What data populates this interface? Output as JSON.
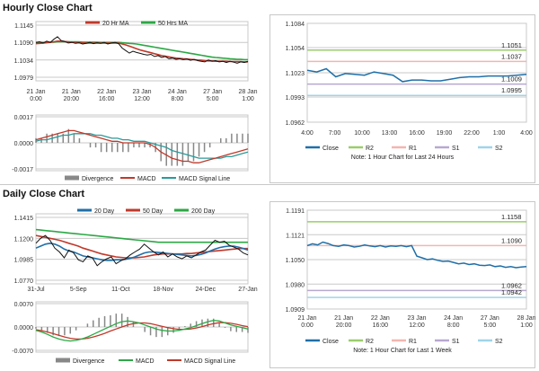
{
  "sections": {
    "hourly_title": "Hourly Close Chart",
    "daily_title": "Daily Close Chart"
  },
  "colors": {
    "close": "#1f6fa8",
    "ma_short": "#c0392b",
    "ma_long": "#2ca845",
    "r2": "#9acd6a",
    "r1": "#f2b6b0",
    "s1": "#b8a8d0",
    "s2": "#9fd4e8",
    "divergence": "#888888",
    "macd_red": "#c0392b",
    "macd_green": "#2ca845",
    "signal_teal": "#2a9a9a",
    "grid": "#c8c8c8"
  },
  "chart_data": [
    {
      "id": "hourly_price",
      "type": "line",
      "title": "",
      "yticks": [
        "1.1145",
        "1.1090",
        "1.1034",
        "1.0979"
      ],
      "ylim": [
        1.0979,
        1.1145
      ],
      "xticks": [
        "21 Jan\n0:00",
        "21 Jan\n20:00",
        "22 Jan\n16:00",
        "23 Jan\n12:00",
        "24 Jan\n8:00",
        "27 Jan\n5:00",
        "28 Jan\n1:00"
      ],
      "legend": [
        "20 Hr MA",
        "50 Hrs MA"
      ],
      "series": [
        {
          "name": "Close",
          "values": [
            1.109,
            1.1092,
            1.1088,
            1.1094,
            1.109,
            1.11,
            1.1108,
            1.1096,
            1.1093,
            1.1088,
            1.109,
            1.1087,
            1.1089,
            1.1085,
            1.1087,
            1.109,
            1.1086,
            1.1089,
            1.1087,
            1.109,
            1.1085,
            1.1088,
            1.109,
            1.1086,
            1.1072,
            1.1064,
            1.1056,
            1.1062,
            1.1058,
            1.1055,
            1.1052,
            1.105,
            1.1052,
            1.1045,
            1.1048,
            1.1042,
            1.1045,
            1.1038,
            1.104,
            1.1036,
            1.1038,
            1.1035,
            1.1037,
            1.1033,
            1.1036,
            1.1032,
            1.103,
            1.1028,
            1.1034,
            1.103,
            1.1032,
            1.1028,
            1.103,
            1.1026,
            1.103,
            1.1027,
            1.1024,
            1.1028,
            1.1026,
            1.103
          ]
        },
        {
          "name": "20 Hr MA",
          "values": [
            1.1086,
            1.1087,
            1.1088,
            1.1089,
            1.109,
            1.1092,
            1.1094,
            1.1094,
            1.1093,
            1.1092,
            1.1091,
            1.109,
            1.1089,
            1.1089,
            1.1088,
            1.1088,
            1.1088,
            1.1088,
            1.1088,
            1.1088,
            1.1088,
            1.1088,
            1.1088,
            1.1088,
            1.1085,
            1.1082,
            1.1078,
            1.1074,
            1.107,
            1.1066,
            1.1063,
            1.106,
            1.1057,
            1.1054,
            1.1051,
            1.1048,
            1.1046,
            1.1044,
            1.1042,
            1.104,
            1.1039,
            1.1038,
            1.1037,
            1.1036,
            1.1035,
            1.1034,
            1.1033,
            1.1032,
            1.1031,
            1.1031,
            1.103,
            1.103,
            1.103,
            1.103,
            1.1029,
            1.1029,
            1.1029,
            1.1029,
            1.1028,
            1.1028
          ]
        },
        {
          "name": "50 Hrs MA",
          "values": [
            1.109,
            1.109,
            1.109,
            1.109,
            1.1091,
            1.1091,
            1.1092,
            1.1092,
            1.1092,
            1.1092,
            1.1092,
            1.1092,
            1.1092,
            1.1091,
            1.1091,
            1.1091,
            1.1091,
            1.1091,
            1.109,
            1.109,
            1.109,
            1.109,
            1.109,
            1.109,
            1.1089,
            1.1088,
            1.1087,
            1.1086,
            1.1085,
            1.1083,
            1.1081,
            1.1079,
            1.1077,
            1.1075,
            1.1073,
            1.1071,
            1.1069,
            1.1067,
            1.1065,
            1.1063,
            1.1061,
            1.1059,
            1.1057,
            1.1055,
            1.1053,
            1.1051,
            1.1049,
            1.1047,
            1.1045,
            1.1043,
            1.1042,
            1.1041,
            1.104,
            1.1039,
            1.1038,
            1.1037,
            1.1036,
            1.1036,
            1.1035,
            1.1035
          ]
        }
      ]
    },
    {
      "id": "hourly_macd",
      "type": "line",
      "yticks": [
        "0.0017",
        "0.0000",
        "-0.0017"
      ],
      "ylim": [
        -0.0017,
        0.0017
      ],
      "legend": [
        "Divergence",
        "MACD",
        "MACD Signal Line"
      ],
      "series": [
        {
          "name": "MACD",
          "values": [
            0.0002,
            0.0003,
            0.0004,
            0.0005,
            0.0006,
            0.0007,
            0.0008,
            0.0008,
            0.0007,
            0.0006,
            0.0005,
            0.0004,
            0.0003,
            0.0002,
            0.0001,
            0.0001,
            0.0,
            0.0,
            0.0,
            0.0,
            0.0,
            -0.0001,
            -0.0003,
            -0.0006,
            -0.0008,
            -0.001,
            -0.0011,
            -0.0012,
            -0.0012,
            -0.0013,
            -0.0013,
            -0.0012,
            -0.0011,
            -0.001,
            -0.0009,
            -0.0008,
            -0.0007,
            -0.0006,
            -0.0005,
            -0.0004
          ]
        },
        {
          "name": "MACD Signal Line",
          "values": [
            0.0001,
            0.0002,
            0.0002,
            0.0003,
            0.0004,
            0.0005,
            0.0005,
            0.0006,
            0.0006,
            0.0006,
            0.0006,
            0.0005,
            0.0005,
            0.0004,
            0.0003,
            0.0003,
            0.0002,
            0.0002,
            0.0001,
            0.0001,
            0.0001,
            0.0,
            -0.0001,
            -0.0002,
            -0.0003,
            -0.0005,
            -0.0006,
            -0.0007,
            -0.0008,
            -0.0009,
            -0.001,
            -0.001,
            -0.001,
            -0.001,
            -0.001,
            -0.0009,
            -0.0009,
            -0.0008,
            -0.0007,
            -0.0006
          ]
        }
      ]
    },
    {
      "id": "hourly_pivot",
      "type": "line",
      "yticks": [
        "1.1084",
        "1.1054",
        "1.1023",
        "1.0993",
        "1.0962"
      ],
      "ylim": [
        1.0962,
        1.1084
      ],
      "xticks": [
        "4:00",
        "7:00",
        "10:00",
        "13:00",
        "16:00",
        "19:00",
        "22:00",
        "1:00",
        "4:00"
      ],
      "levels": [
        {
          "name": "R2",
          "value": 1.1051,
          "label": "1.1051"
        },
        {
          "name": "R1",
          "value": 1.1037,
          "label": "1.1037"
        },
        {
          "name": "S1",
          "value": 1.1009,
          "label": "1.1009"
        },
        {
          "name": "S2",
          "value": 1.0995,
          "label": "1.0995"
        }
      ],
      "series": [
        {
          "name": "Close",
          "values": [
            1.1026,
            1.1024,
            1.1028,
            1.1018,
            1.1022,
            1.1021,
            1.102,
            1.1024,
            1.1022,
            1.102,
            1.1012,
            1.1014,
            1.1014,
            1.1013,
            1.1013,
            1.1015,
            1.1017,
            1.1018,
            1.1018,
            1.1019,
            1.1019,
            1.1019,
            1.102,
            1.1021
          ]
        }
      ],
      "legend": [
        "Close",
        "R2",
        "R1",
        "S1",
        "S2"
      ],
      "note": "Note: 1 Hour Chart for Last 24 Hours"
    },
    {
      "id": "daily_price",
      "type": "line",
      "yticks": [
        "1.1415",
        "1.1200",
        "1.0985",
        "1.0770"
      ],
      "ylim": [
        1.077,
        1.1415
      ],
      "xticks": [
        "31-Jul",
        "5-Sep",
        "11-Oct",
        "18-Nov",
        "24-Dec",
        "27-Jan"
      ],
      "legend": [
        "20 Day",
        "50 Day",
        "200 Day"
      ],
      "series": [
        {
          "name": "Close",
          "values": [
            1.115,
            1.12,
            1.123,
            1.118,
            1.11,
            1.106,
            1.1,
            1.108,
            1.105,
            1.098,
            1.096,
            1.102,
            1.1,
            1.092,
            1.096,
            1.099,
            1.101,
            1.094,
            1.097,
            1.099,
            1.103,
            1.106,
            1.109,
            1.114,
            1.11,
            1.106,
            1.103,
            1.106,
            1.101,
            1.104,
            1.101,
            1.099,
            1.102,
            1.1,
            1.103,
            1.106,
            1.108,
            1.113,
            1.118,
            1.116,
            1.117,
            1.113,
            1.111,
            1.109,
            1.105,
            1.103
          ]
        },
        {
          "name": "20 Day",
          "values": [
            1.11,
            1.112,
            1.114,
            1.115,
            1.114,
            1.112,
            1.109,
            1.107,
            1.106,
            1.104,
            1.102,
            1.101,
            1.1,
            1.099,
            1.098,
            1.0975,
            1.0975,
            1.098,
            1.098,
            1.0985,
            1.0995,
            1.101,
            1.103,
            1.105,
            1.106,
            1.106,
            1.1055,
            1.105,
            1.1045,
            1.104,
            1.1035,
            1.103,
            1.1025,
            1.102,
            1.1025,
            1.1035,
            1.105,
            1.107,
            1.109,
            1.1105,
            1.1115,
            1.112,
            1.112,
            1.111,
            1.1095,
            1.108
          ]
        },
        {
          "name": "50 Day",
          "values": [
            1.123,
            1.122,
            1.121,
            1.12,
            1.119,
            1.118,
            1.1165,
            1.115,
            1.1135,
            1.112,
            1.11,
            1.1085,
            1.107,
            1.1055,
            1.104,
            1.103,
            1.102,
            1.101,
            1.1005,
            1.1,
            1.1,
            1.1,
            1.1005,
            1.101,
            1.102,
            1.103,
            1.1035,
            1.104,
            1.104,
            1.104,
            1.104,
            1.104,
            1.1045,
            1.1045,
            1.105,
            1.1055,
            1.106,
            1.1065,
            1.107,
            1.1075,
            1.108,
            1.1085,
            1.109,
            1.1095,
            1.1095,
            1.1095
          ]
        },
        {
          "name": "200 Day",
          "values": [
            1.129,
            1.1285,
            1.128,
            1.1275,
            1.127,
            1.1265,
            1.126,
            1.1255,
            1.125,
            1.1245,
            1.124,
            1.1235,
            1.123,
            1.1225,
            1.122,
            1.1215,
            1.121,
            1.1205,
            1.12,
            1.1195,
            1.119,
            1.1185,
            1.118,
            1.1175,
            1.117,
            1.1165,
            1.116,
            1.116,
            1.116,
            1.116,
            1.116,
            1.116,
            1.116,
            1.116,
            1.116,
            1.116,
            1.116,
            1.116,
            1.116,
            1.116,
            1.116,
            1.116,
            1.116,
            1.116,
            1.116,
            1.116
          ]
        }
      ]
    },
    {
      "id": "daily_macd",
      "type": "line",
      "yticks": [
        "0.0070",
        "0.0000",
        "-0.0070"
      ],
      "ylim": [
        -0.007,
        0.007
      ],
      "legend": [
        "Divergence",
        "MACD",
        "MACD Signal Line"
      ],
      "series": [
        {
          "name": "MACD",
          "values": [
            -0.001,
            -0.0015,
            -0.0022,
            -0.003,
            -0.0036,
            -0.004,
            -0.0042,
            -0.004,
            -0.0036,
            -0.003,
            -0.0022,
            -0.0014,
            -0.0006,
            0.0002,
            0.001,
            0.0016,
            0.0018,
            0.0016,
            0.0012,
            0.0006,
            0.0,
            -0.0006,
            -0.001,
            -0.0012,
            -0.0012,
            -0.001,
            -0.0006,
            -0.0002,
            0.0004,
            0.001,
            0.0016,
            0.002,
            0.0018,
            0.0012,
            0.0006,
            0.0002,
            -0.0002,
            -0.0006
          ]
        },
        {
          "name": "MACD Signal Line",
          "values": [
            -0.0008,
            -0.0011,
            -0.0015,
            -0.002,
            -0.0025,
            -0.003,
            -0.0034,
            -0.0036,
            -0.0036,
            -0.0034,
            -0.003,
            -0.0025,
            -0.0019,
            -0.0012,
            -0.0006,
            0.0,
            0.0006,
            0.001,
            0.0012,
            0.0012,
            0.001,
            0.0006,
            0.0002,
            -0.0002,
            -0.0005,
            -0.0007,
            -0.0007,
            -0.0006,
            -0.0003,
            0.0001,
            0.0006,
            0.001,
            0.0013,
            0.0013,
            0.0011,
            0.0008,
            0.0004,
            0.0001
          ]
        }
      ]
    },
    {
      "id": "daily_pivot",
      "type": "line",
      "yticks": [
        "1.1191",
        "1.1121",
        "1.1050",
        "1.0980",
        "1.0909"
      ],
      "ylim": [
        1.0909,
        1.1191
      ],
      "xticks": [
        "21 Jan\n0:00",
        "21 Jan\n20:00",
        "22 Jan\n16:00",
        "23 Jan\n12:00",
        "24 Jan\n8:00",
        "27 Jan\n5:00",
        "28 Jan\n1:00"
      ],
      "levels": [
        {
          "name": "R2",
          "value": 1.1158,
          "label": "1.1158"
        },
        {
          "name": "R1",
          "value": 1.109,
          "label": "1.1090"
        },
        {
          "name": "S1",
          "value": 1.0962,
          "label": "1.0962"
        },
        {
          "name": "S2",
          "value": 1.0942,
          "label": "1.0942"
        }
      ],
      "series": [
        {
          "name": "Close",
          "values": [
            1.109,
            1.1095,
            1.1092,
            1.11,
            1.1096,
            1.109,
            1.1088,
            1.1092,
            1.109,
            1.1086,
            1.1088,
            1.1092,
            1.1089,
            1.1087,
            1.109,
            1.1086,
            1.1089,
            1.1088,
            1.109,
            1.1087,
            1.109,
            1.106,
            1.1055,
            1.105,
            1.1052,
            1.1048,
            1.1045,
            1.1046,
            1.1042,
            1.1038,
            1.104,
            1.1036,
            1.1038,
            1.1034,
            1.1033,
            1.1035,
            1.103,
            1.1032,
            1.1028,
            1.103,
            1.1027,
            1.1029,
            1.103
          ]
        }
      ],
      "legend": [
        "Close",
        "R2",
        "R1",
        "S1",
        "S2"
      ],
      "note": "Note: 1 Hour Chart for Last 1 Week"
    }
  ]
}
